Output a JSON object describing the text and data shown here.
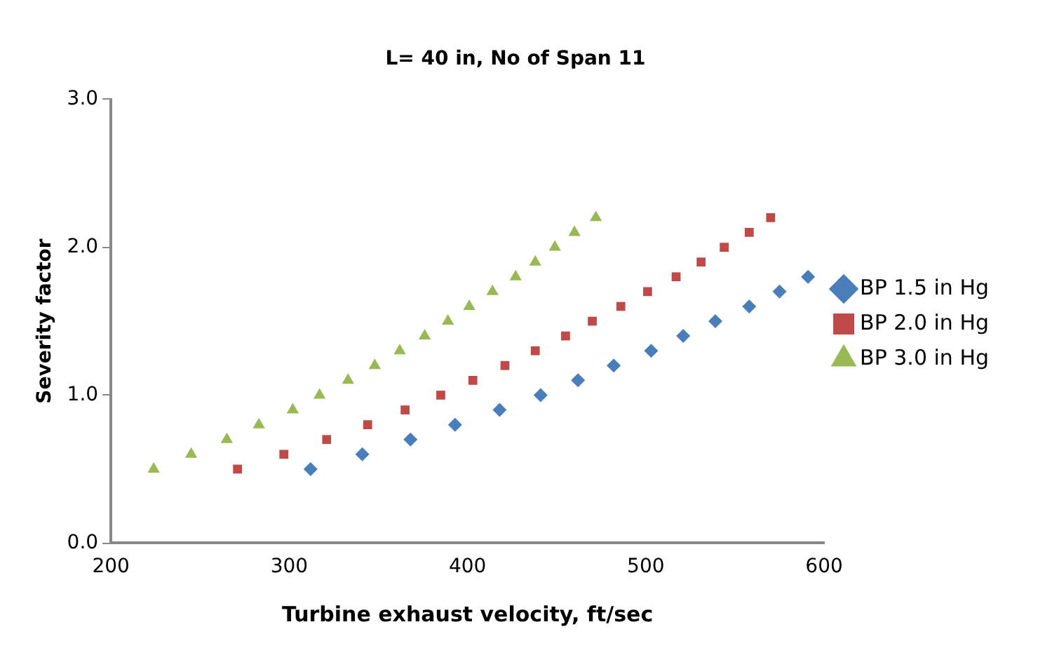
{
  "chart_data": {
    "type": "scatter",
    "title": "L= 40 in, No of Span 11",
    "xlabel": "Turbine exhaust velocity, ft/sec",
    "ylabel": "Severity factor",
    "xlim": [
      200,
      600
    ],
    "xticks": [
      200,
      300,
      400,
      500,
      600
    ],
    "ylim": [
      0,
      3
    ],
    "yticks": [
      {
        "value": 0,
        "label": "0.0"
      },
      {
        "value": 1,
        "label": "1.0"
      },
      {
        "value": 2,
        "label": "2.0"
      },
      {
        "value": 3,
        "label": "3.0"
      }
    ],
    "grid": false,
    "legend": "right",
    "series": [
      {
        "name": "BP 1.5 in Hg",
        "color": "#4a7ebb",
        "marker": "diamond",
        "x": [
          312,
          341,
          368,
          393,
          418,
          441,
          462,
          482,
          503,
          521,
          539,
          558,
          575,
          591
        ],
        "values": [
          0.5,
          0.6,
          0.7,
          0.8,
          0.9,
          1.0,
          1.1,
          1.2,
          1.3,
          1.4,
          1.5,
          1.6,
          1.7,
          1.8
        ]
      },
      {
        "name": "BP 2.0 in Hg",
        "color": "#be4b48",
        "marker": "square",
        "x": [
          271,
          297,
          321,
          344,
          365,
          385,
          403,
          421,
          438,
          455,
          470,
          486,
          501,
          517,
          531,
          544,
          558,
          570
        ],
        "values": [
          0.5,
          0.6,
          0.7,
          0.8,
          0.9,
          1.0,
          1.1,
          1.2,
          1.3,
          1.4,
          1.5,
          1.6,
          1.7,
          1.8,
          1.9,
          2.0,
          2.1,
          2.2
        ]
      },
      {
        "name": "BP 3.0 in Hg",
        "color": "#98b954",
        "marker": "triangle",
        "x": [
          224,
          245,
          265,
          283,
          302,
          317,
          333,
          348,
          362,
          376,
          389,
          401,
          414,
          427,
          438,
          449,
          460,
          472
        ],
        "values": [
          0.5,
          0.6,
          0.7,
          0.8,
          0.9,
          1.0,
          1.1,
          1.2,
          1.3,
          1.4,
          1.5,
          1.6,
          1.7,
          1.8,
          1.9,
          2.0,
          2.1,
          2.2
        ]
      }
    ]
  }
}
